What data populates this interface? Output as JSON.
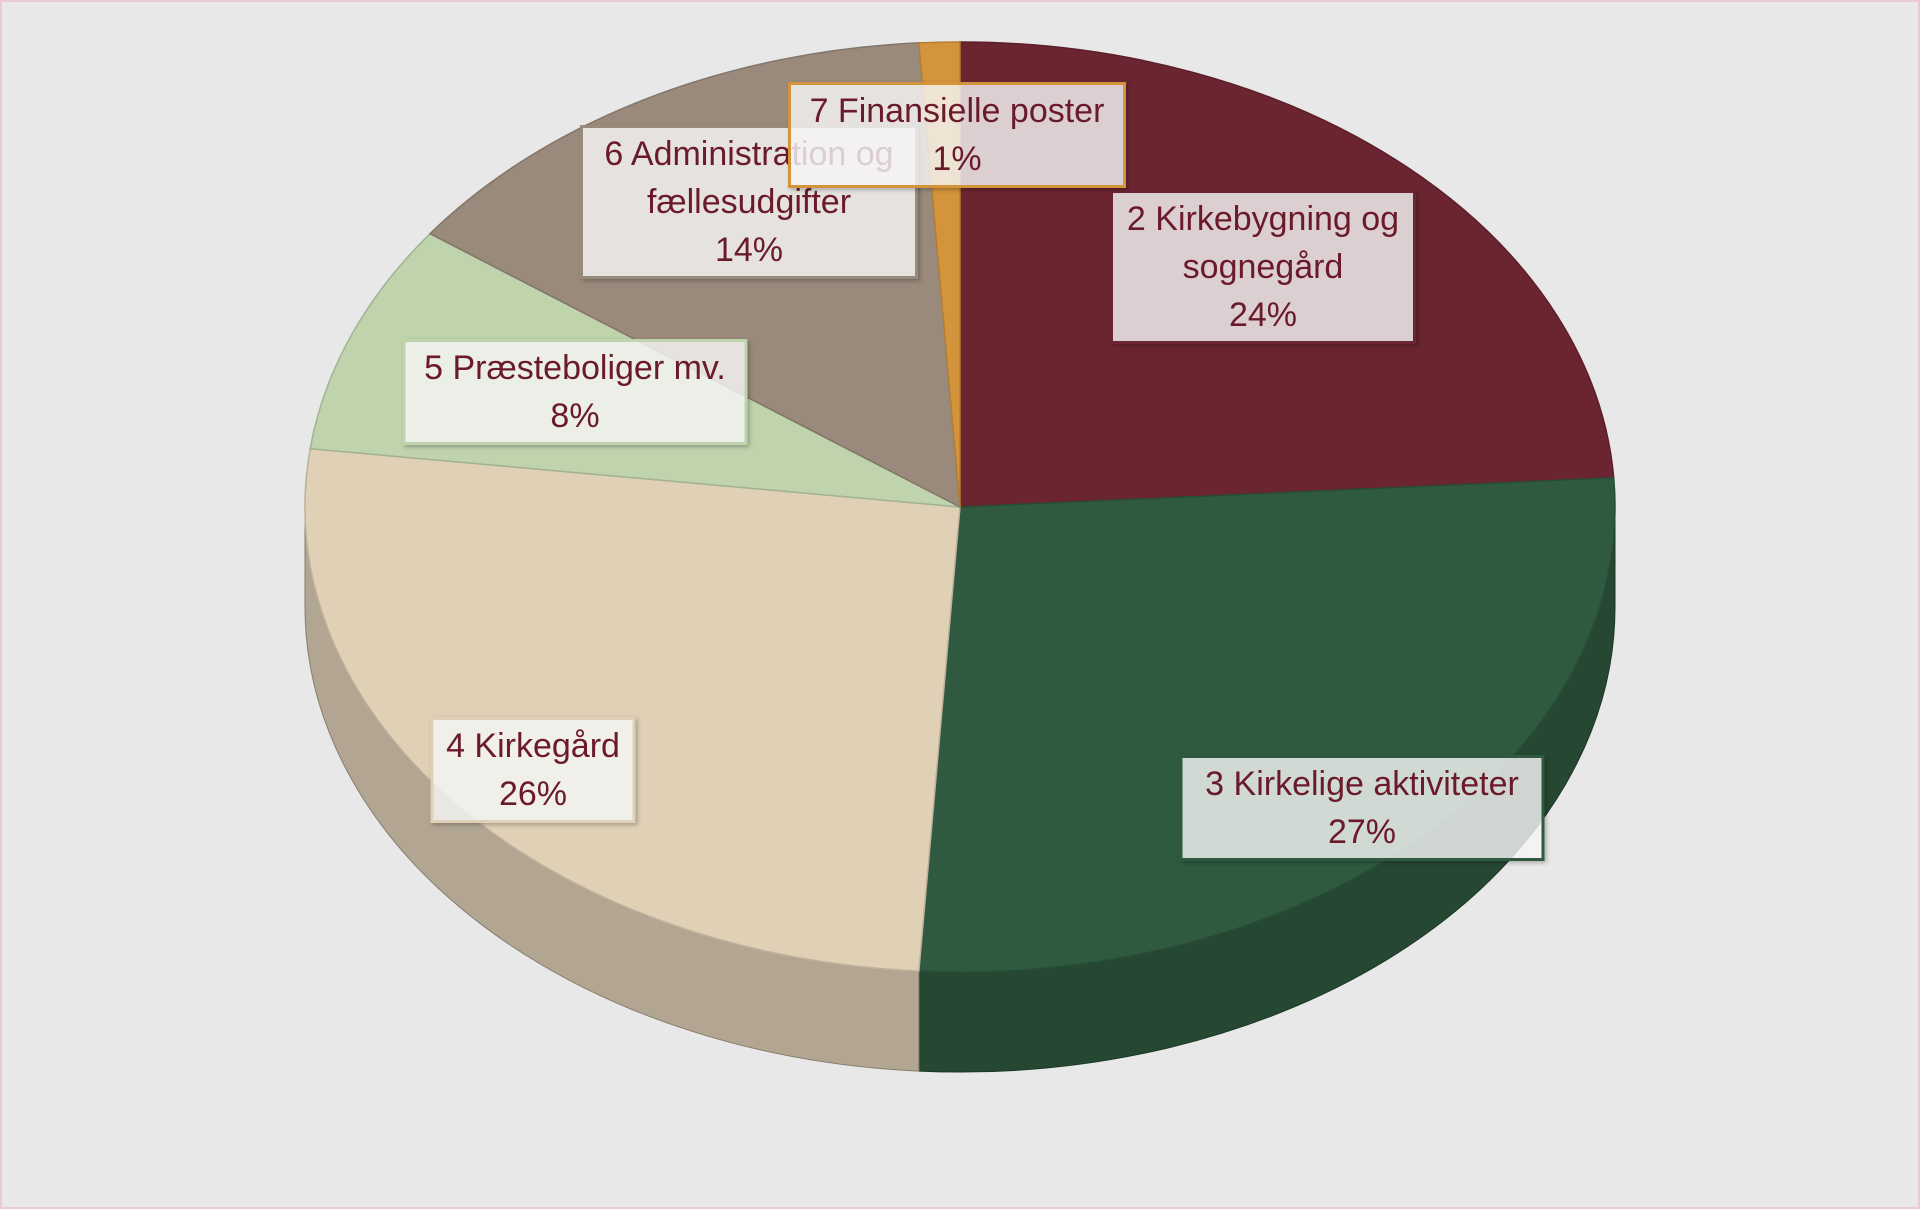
{
  "chart_data": {
    "type": "pie",
    "categories": [
      "2 Kirkebygning og sognegård",
      "3 Kirkelige aktiviteter",
      "4 Kirkegård",
      "5 Præsteboliger mv.",
      "6 Administration og fællesudgifter",
      "7 Finansielle poster"
    ],
    "values": [
      24,
      27,
      26,
      8,
      14,
      1
    ],
    "value_labels": [
      "24%",
      "27%",
      "26%",
      "8%",
      "14%",
      "1%"
    ],
    "colors": [
      "#6b2530",
      "#2f5a40",
      "#dfd0b6",
      "#bfd3ad",
      "#9a8a7c",
      "#d4943c"
    ]
  }
}
